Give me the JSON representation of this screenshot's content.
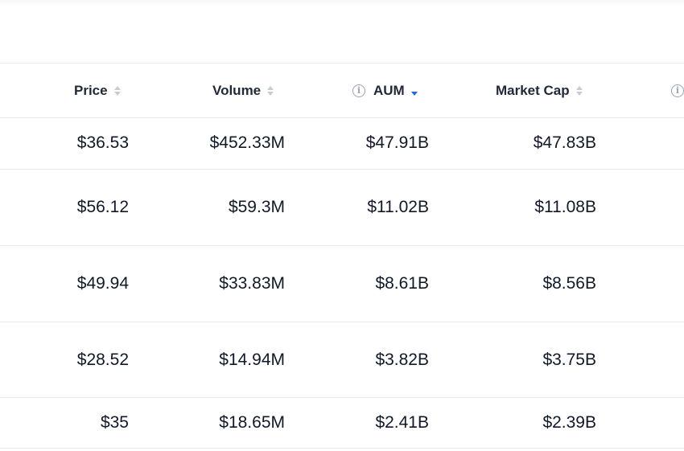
{
  "table": {
    "columns": {
      "price": "Price",
      "volume": "Volume",
      "aum": "AUM",
      "market_cap": "Market Cap"
    },
    "sort": {
      "column": "AUM",
      "direction": "desc"
    },
    "rows": [
      {
        "price": "$36.53",
        "volume": "$452.33M",
        "aum": "$47.91B",
        "market_cap": "$47.83B"
      },
      {
        "price": "$56.12",
        "volume": "$59.3M",
        "aum": "$11.02B",
        "market_cap": "$11.08B"
      },
      {
        "price": "$49.94",
        "volume": "$33.83M",
        "aum": "$8.61B",
        "market_cap": "$8.56B"
      },
      {
        "price": "$28.52",
        "volume": "$14.94M",
        "aum": "$3.82B",
        "market_cap": "$3.75B"
      },
      {
        "price": "$35",
        "volume": "$18.65M",
        "aum": "$2.41B",
        "market_cap": "$2.39B"
      }
    ]
  },
  "colors": {
    "accent": "#2563eb",
    "border": "#e6e8eb",
    "muted_icon": "#9aa3b2"
  }
}
